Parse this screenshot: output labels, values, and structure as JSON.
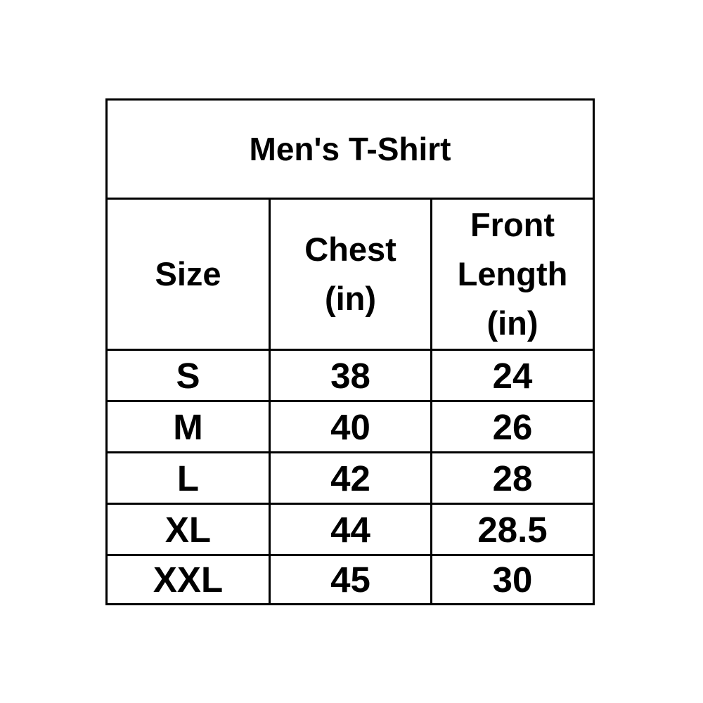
{
  "page": {
    "background_color": "#ffffff"
  },
  "chart_data": {
    "type": "table",
    "title": "Men's T-Shirt",
    "columns": [
      "Size",
      "Chest (in)",
      "Front Length (in)"
    ],
    "rows": [
      [
        "S",
        "38",
        "24"
      ],
      [
        "M",
        "40",
        "26"
      ],
      [
        "L",
        "42",
        "28"
      ],
      [
        "XL",
        "44",
        "28.5"
      ],
      [
        "XXL",
        "45",
        "30"
      ]
    ]
  },
  "display": {
    "header_lines": [
      [
        "Size"
      ],
      [
        "Chest",
        "(in)"
      ],
      [
        "Front",
        "Length",
        "(in)"
      ]
    ]
  },
  "colors": {
    "border": "#000000",
    "text": "#000000",
    "background": "#ffffff"
  }
}
